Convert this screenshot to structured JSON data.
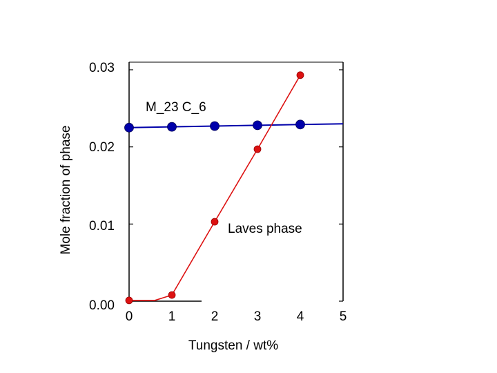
{
  "chart_data": {
    "type": "line",
    "title": "",
    "xlabel": "Tungsten / wt%",
    "ylabel": "Mole fraction of phase",
    "xlim": [
      0,
      5
    ],
    "ylim": [
      0,
      0.03
    ],
    "x_ticks": [
      "0",
      "1",
      "2",
      "3",
      "4",
      "5"
    ],
    "y_ticks": [
      "0.00",
      "0.01",
      "0.02",
      "0.03"
    ],
    "series": [
      {
        "name": "M_23 C_6",
        "color": "#0000aa",
        "x": [
          0,
          1,
          2,
          3,
          4
        ],
        "values": [
          0.0225,
          0.0226,
          0.0227,
          0.0228,
          0.0229
        ],
        "line_x": [
          0,
          1,
          2,
          3,
          4,
          5
        ],
        "line_y": [
          0.0225,
          0.0226,
          0.0227,
          0.0228,
          0.0229,
          0.023
        ]
      },
      {
        "name": "Laves phase",
        "color": "#dd1111",
        "x": [
          0,
          1,
          2,
          3,
          4
        ],
        "values": [
          0.0001,
          0.0008,
          0.0103,
          0.0197,
          0.0293
        ],
        "line_x": [
          0,
          0.6,
          1,
          2,
          3,
          4
        ],
        "line_y": [
          0.0001,
          0.0001,
          0.0008,
          0.0103,
          0.0197,
          0.0293
        ]
      }
    ],
    "annotations": [
      "M_23 C_6",
      "Laves phase"
    ]
  }
}
